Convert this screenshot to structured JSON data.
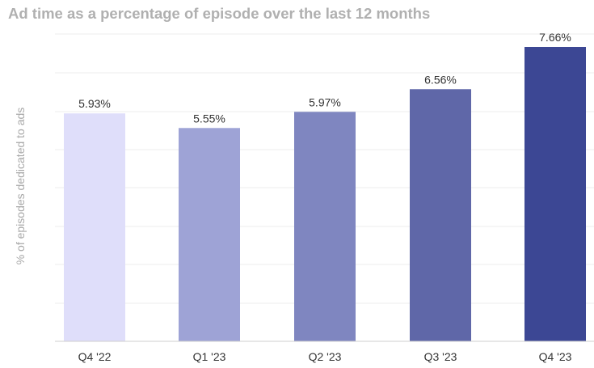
{
  "chart_data": {
    "type": "bar",
    "title": "Ad time as a percentage of episode over the last 12 months",
    "ylabel": "% of episodes dedicated to ads",
    "xlabel": "",
    "categories": [
      "Q4 '22",
      "Q1 '23",
      "Q2 '23",
      "Q3 '23",
      "Q4 '23"
    ],
    "values": [
      5.93,
      5.55,
      5.97,
      6.56,
      7.66
    ],
    "value_labels": [
      "5.93%",
      "5.55%",
      "5.97%",
      "6.56%",
      "7.66%"
    ],
    "ylim": [
      0,
      7.66
    ],
    "grid": true,
    "legend": "none",
    "colors": [
      "#dfdefa",
      "#9ea3d6",
      "#7f86c0",
      "#5f67a8",
      "#3c4794"
    ]
  }
}
